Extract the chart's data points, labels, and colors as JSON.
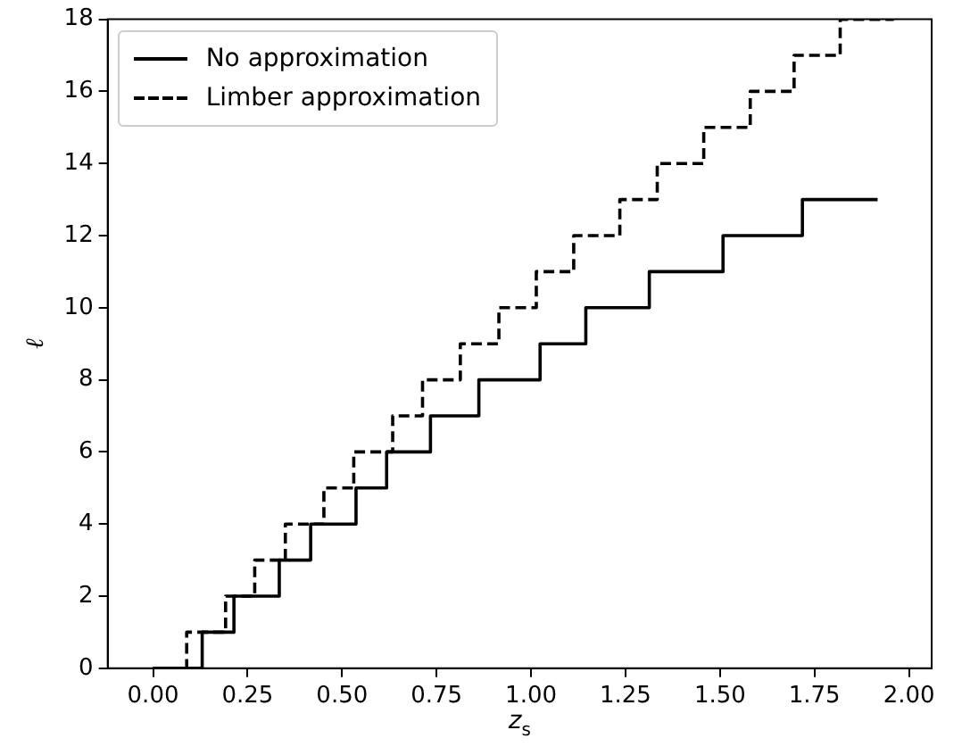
{
  "chart_data": {
    "type": "step",
    "xlabel": "z$_{s}$",
    "ylabel": "ℓ",
    "xlim": [
      -0.12,
      2.06
    ],
    "ylim": [
      0,
      18
    ],
    "xticks": [
      {
        "value": 0,
        "label": "0.00"
      },
      {
        "value": 0.25,
        "label": "0.25"
      },
      {
        "value": 0.5,
        "label": "0.50"
      },
      {
        "value": 0.75,
        "label": "0.75"
      },
      {
        "value": 1,
        "label": "1.00"
      },
      {
        "value": 1.25,
        "label": "1.25"
      },
      {
        "value": 1.5,
        "label": "1.50"
      },
      {
        "value": 1.75,
        "label": "1.75"
      },
      {
        "value": 2,
        "label": "2.00"
      }
    ],
    "yticks": [
      0,
      2,
      4,
      6,
      8,
      10,
      12,
      14,
      16,
      18
    ],
    "grid": false,
    "legend": "top left",
    "series": [
      {
        "name": "No approximation",
        "color": "#000000",
        "line_style": "solid",
        "x": [
          0,
          0.13,
          0.214,
          0.334,
          0.417,
          0.537,
          0.618,
          0.734,
          0.862,
          1.024,
          1.145,
          1.313,
          1.508,
          1.718,
          1.917
        ],
        "values": [
          0,
          1,
          2,
          3,
          4,
          5,
          6,
          7,
          8,
          9,
          10,
          11,
          12,
          13,
          13
        ]
      },
      {
        "name": "Limber approximation",
        "color": "#000000",
        "line_style": "dashed",
        "x": [
          0,
          0.089,
          0.192,
          0.269,
          0.35,
          0.452,
          0.531,
          0.634,
          0.713,
          0.813,
          0.915,
          1.014,
          1.113,
          1.235,
          1.334,
          1.457,
          1.58,
          1.696,
          1.818,
          1.96
        ],
        "values": [
          0,
          1,
          2,
          3,
          4,
          5,
          6,
          7,
          8,
          9,
          10,
          11,
          12,
          13,
          14,
          15,
          16,
          17,
          18,
          18
        ]
      }
    ]
  }
}
